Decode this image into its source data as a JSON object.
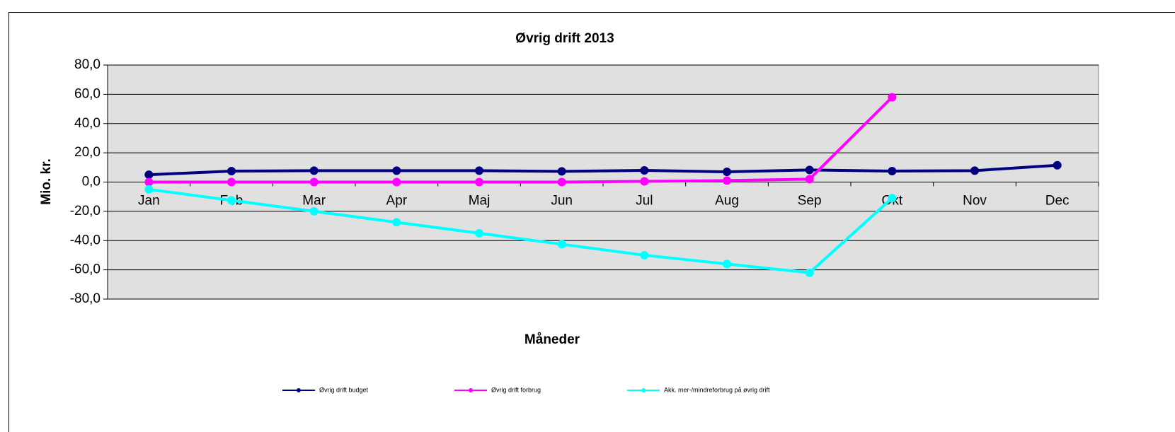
{
  "chart_data": {
    "type": "line",
    "title": "Øvrig drift 2013",
    "x_label": "Måneder",
    "y_label": "Mio. kr.",
    "categories": [
      "Jan",
      "Feb",
      "Mar",
      "Apr",
      "Maj",
      "Jun",
      "Jul",
      "Aug",
      "Sep",
      "Okt",
      "Nov",
      "Dec"
    ],
    "series": [
      {
        "name": "Øvrig drift budget",
        "color": "#000080",
        "values": [
          5,
          7.5,
          7.8,
          7.8,
          7.8,
          7.3,
          8,
          7,
          8.3,
          7.5,
          7.8,
          11.5
        ]
      },
      {
        "name": "Øvrig drift forbrug",
        "color": "#ff00ff",
        "values": [
          0,
          0,
          0,
          0,
          0,
          0,
          0.5,
          1,
          2,
          58,
          null,
          null
        ]
      },
      {
        "name": "Akk. mer-/mindreforbrug på øvrig drift",
        "color": "#00ffff",
        "values": [
          -5,
          -12.5,
          -20,
          -27.5,
          -35,
          -42.5,
          -50,
          -56,
          -62,
          -11,
          null,
          null
        ]
      }
    ],
    "ylim": [
      -80,
      80
    ],
    "yticks": [
      {
        "value": -80,
        "label": "-80,0"
      },
      {
        "value": -60,
        "label": "-60,0"
      },
      {
        "value": -40,
        "label": "-40,0"
      },
      {
        "value": -20,
        "label": "-20,0"
      },
      {
        "value": 0,
        "label": "0,0"
      },
      {
        "value": 20,
        "label": "20,0"
      },
      {
        "value": 40,
        "label": "40,0"
      },
      {
        "value": 60,
        "label": "60,0"
      },
      {
        "value": 80,
        "label": "80,0"
      }
    ],
    "grid": true,
    "legend": "bottom"
  }
}
